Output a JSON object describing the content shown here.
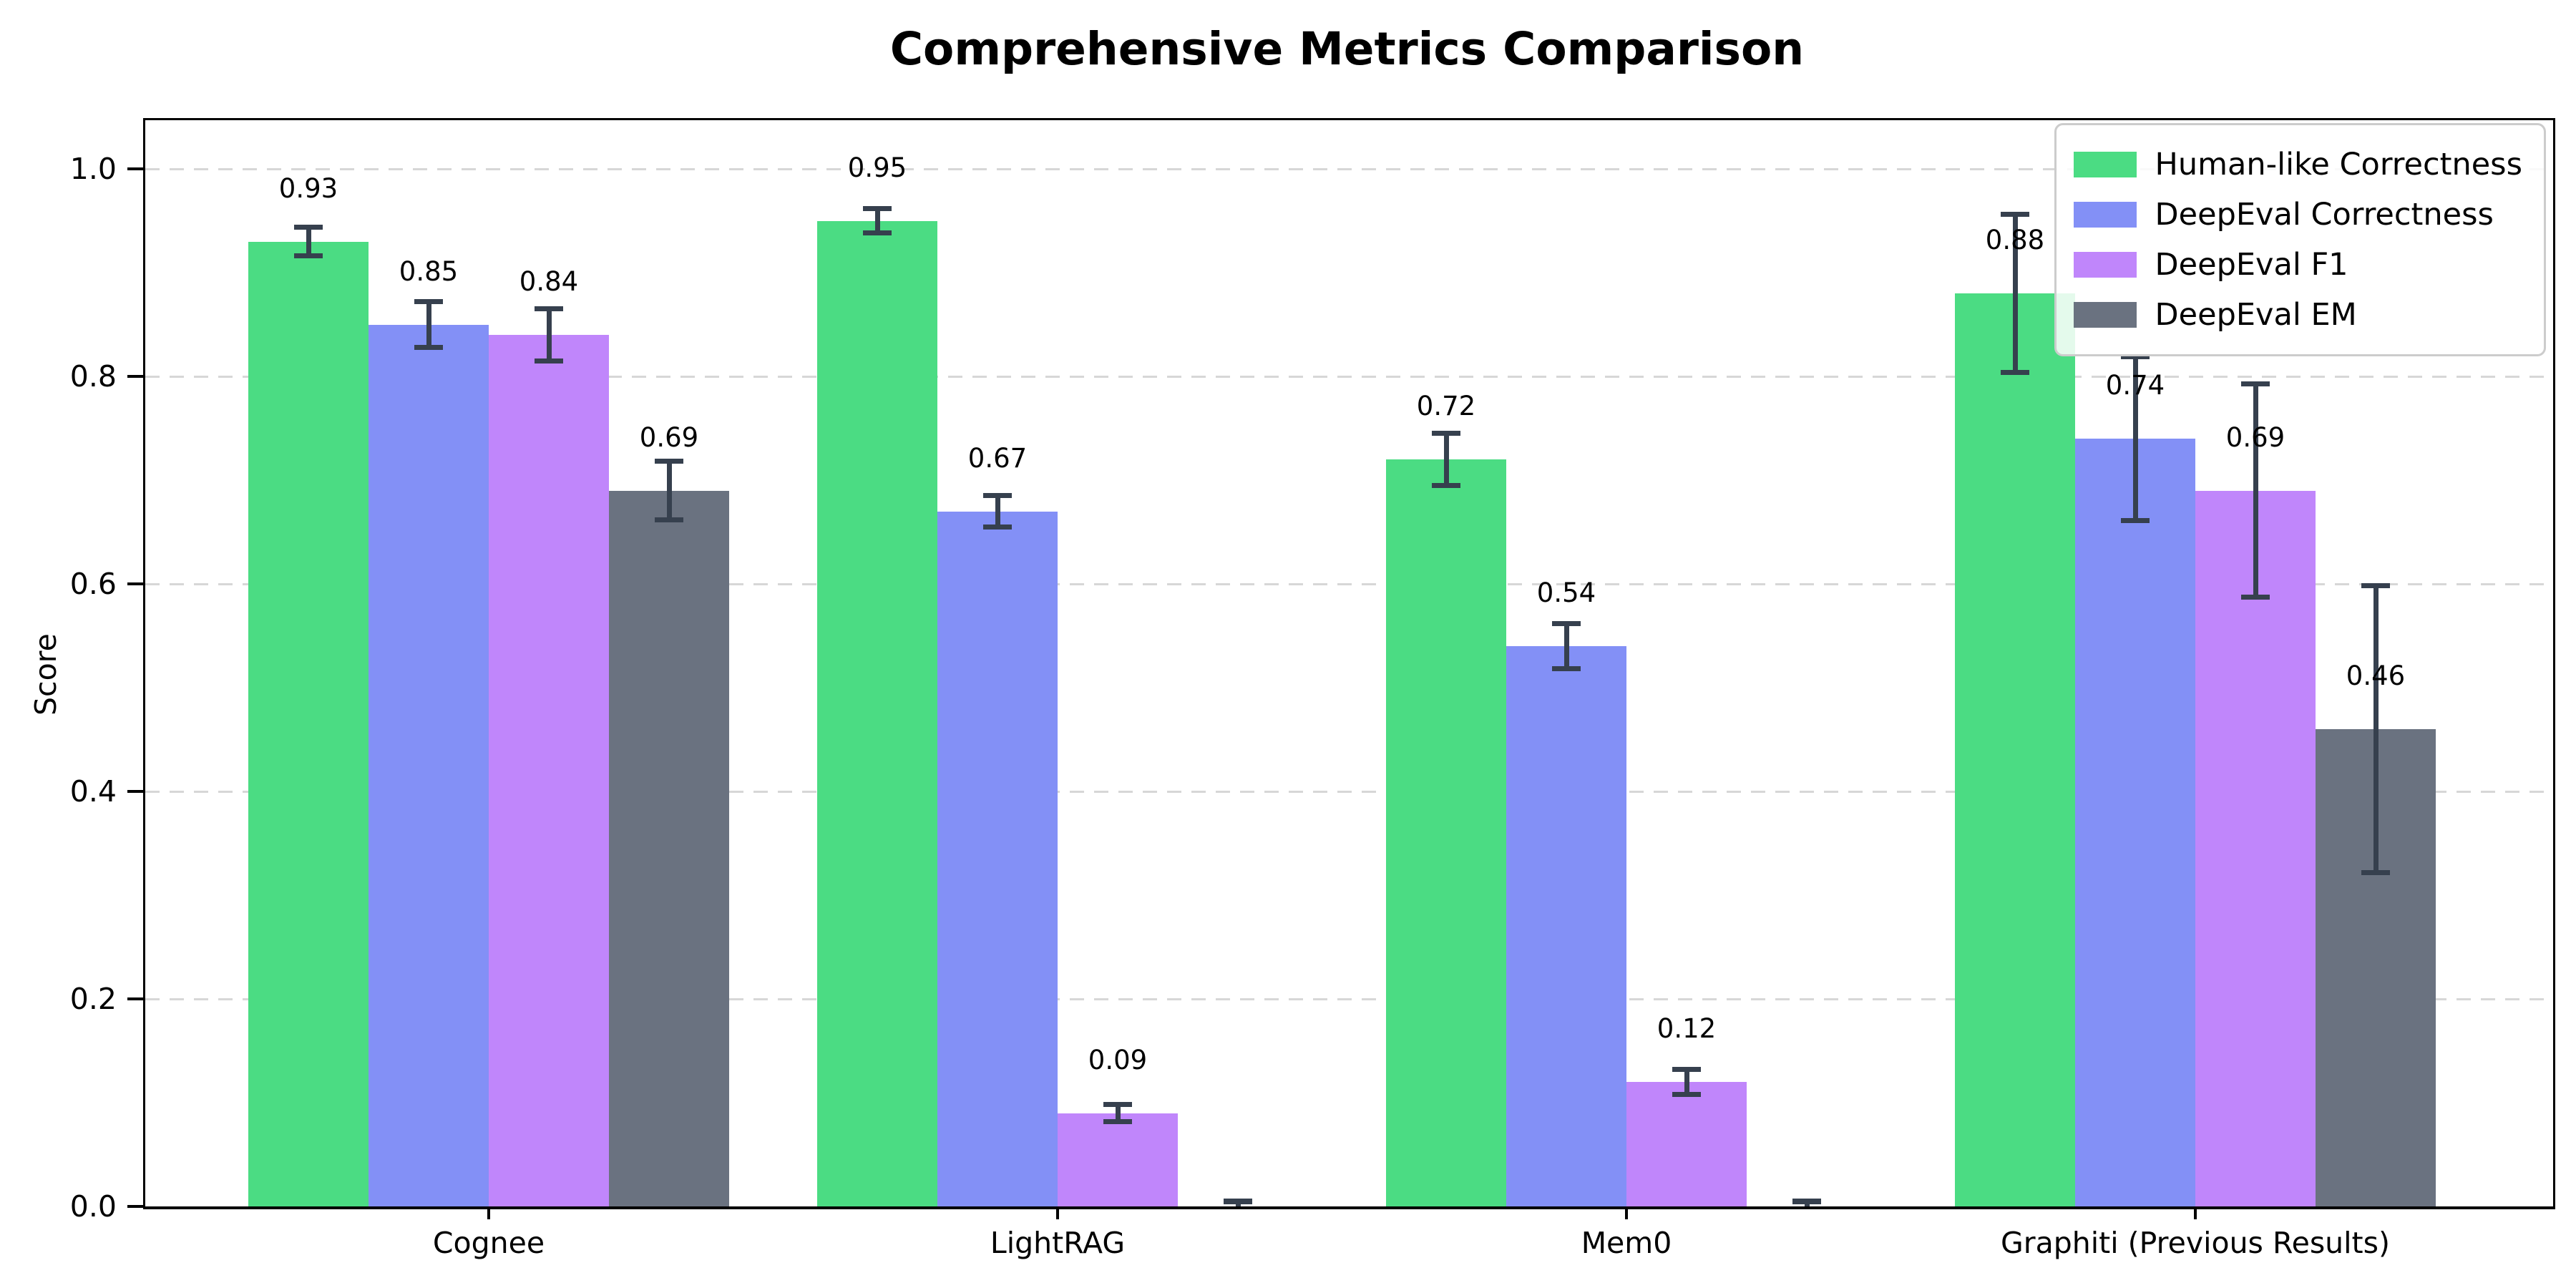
{
  "chart_data": {
    "type": "bar",
    "title": "Comprehensive Metrics Comparison",
    "ylabel": "Score",
    "xlabel": "",
    "categories": [
      "Cognee",
      "LightRAG",
      "Mem0",
      "Graphiti (Previous Results)"
    ],
    "ytick_labels": [
      "0.0",
      "0.2",
      "0.4",
      "0.6",
      "0.8",
      "1.0"
    ],
    "yticks": [
      0.0,
      0.2,
      0.4,
      0.6,
      0.8,
      1.0
    ],
    "ylim": [
      0,
      1.047
    ],
    "grid": "horizontal-dashed",
    "grid_color": "#d7d7d7",
    "legend_position": "upper-right",
    "error_bar_color": "#36404e",
    "series": [
      {
        "name": "Human-like Correctness",
        "color": "#4bdc83",
        "values": [
          0.93,
          0.95,
          0.72,
          0.88
        ],
        "errors": [
          0.014,
          0.012,
          0.025,
          0.076
        ],
        "labels": [
          "0.93",
          "0.95",
          "0.72",
          "0.88"
        ]
      },
      {
        "name": "DeepEval Correctness",
        "color": "#8390f6",
        "values": [
          0.85,
          0.67,
          0.54,
          0.74
        ],
        "errors": [
          0.022,
          0.015,
          0.022,
          0.079
        ],
        "labels": [
          "0.85",
          "0.67",
          "0.54",
          "0.74"
        ]
      },
      {
        "name": "DeepEval F1",
        "color": "#c086fb",
        "values": [
          0.84,
          0.09,
          0.12,
          0.69
        ],
        "errors": [
          0.025,
          0.008,
          0.012,
          0.103
        ],
        "labels": [
          "0.84",
          "0.09",
          "0.12",
          "0.69"
        ]
      },
      {
        "name": "DeepEval EM",
        "color": "#6a7280",
        "values": [
          0.69,
          0.0,
          0.0,
          0.46
        ],
        "errors": [
          0.028,
          0.005,
          0.005,
          0.138
        ],
        "labels": [
          "0.69",
          "",
          "",
          "0.46"
        ]
      }
    ]
  }
}
